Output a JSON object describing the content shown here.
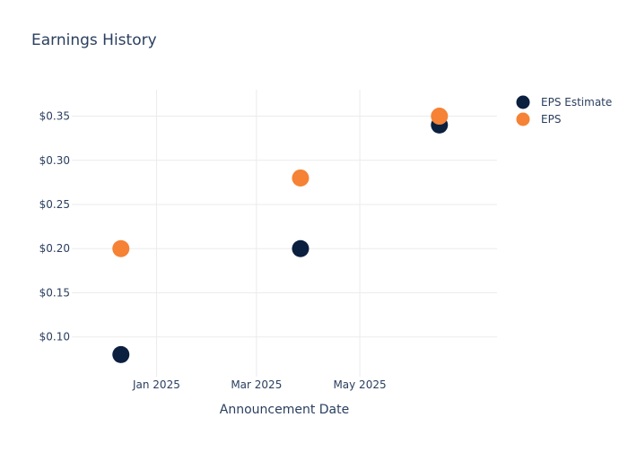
{
  "chart_data": {
    "type": "scatter",
    "title": "Earnings History",
    "xlabel": "Announcement Date",
    "ylabel": "",
    "x_tick_labels": [
      {
        "date": "2025-01-01",
        "label": "Jan 2025"
      },
      {
        "date": "2025-03-01",
        "label": "Mar 2025"
      },
      {
        "date": "2025-05-01",
        "label": "May 2025"
      }
    ],
    "y_ticks": [
      0.1,
      0.15,
      0.2,
      0.25,
      0.3,
      0.35
    ],
    "y_tick_prefix": "$",
    "ylim": [
      0.055,
      0.38
    ],
    "xlim": [
      "2024-11-12",
      "2025-07-21"
    ],
    "grid": true,
    "legend_position": "top-right",
    "series": [
      {
        "name": "EPS Estimate",
        "color": "#0b1f3f",
        "points": [
          {
            "x": "2024-12-11",
            "y": 0.08
          },
          {
            "x": "2025-03-27",
            "y": 0.2
          },
          {
            "x": "2025-06-17",
            "y": 0.34
          }
        ]
      },
      {
        "name": "EPS",
        "color": "#f58235",
        "points": [
          {
            "x": "2024-12-11",
            "y": 0.2
          },
          {
            "x": "2025-03-27",
            "y": 0.28
          },
          {
            "x": "2025-06-17",
            "y": 0.35
          }
        ]
      }
    ]
  }
}
